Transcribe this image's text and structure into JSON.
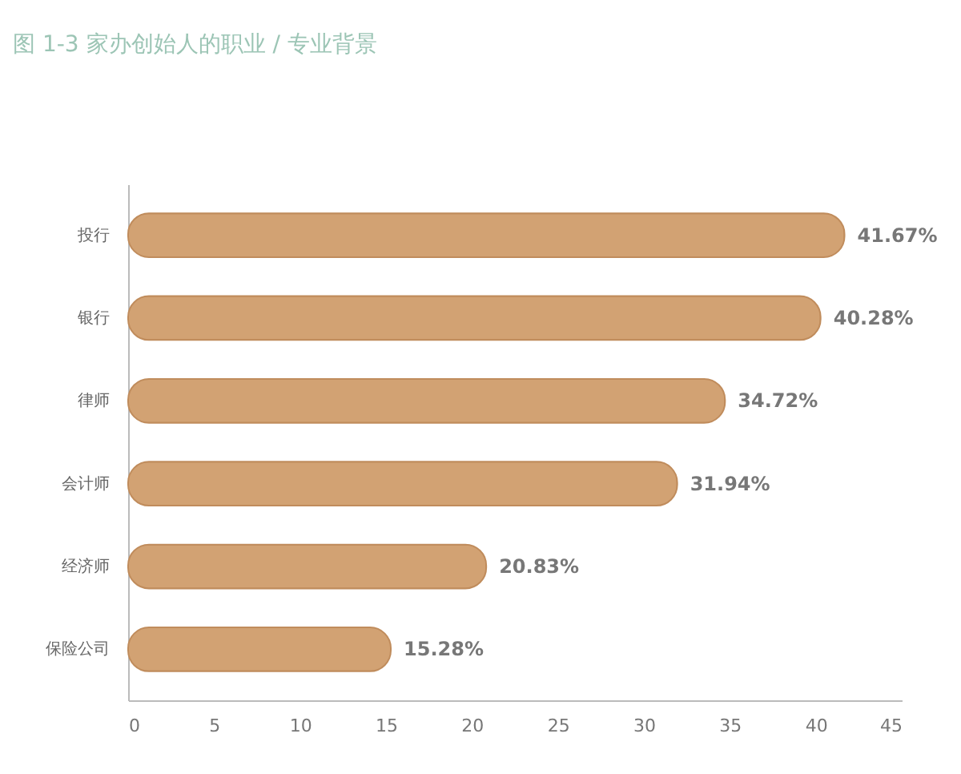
{
  "chart_data": {
    "type": "bar",
    "orientation": "horizontal",
    "title": "图 1-3 家办创始人的职业 / 专业背景",
    "categories": [
      "投行",
      "银行",
      "律师",
      "会计师",
      "经济师",
      "保险公司"
    ],
    "values": [
      41.67,
      40.28,
      34.72,
      31.94,
      20.83,
      15.28
    ],
    "value_labels": [
      "41.67%",
      "40.28%",
      "34.72%",
      "31.94%",
      "20.83%",
      "15.28%"
    ],
    "color": "#d2a273",
    "xlim": [
      0,
      45
    ],
    "xticks": [
      0,
      5,
      10,
      15,
      20,
      25,
      30,
      35,
      40,
      45
    ],
    "grid": false
  }
}
